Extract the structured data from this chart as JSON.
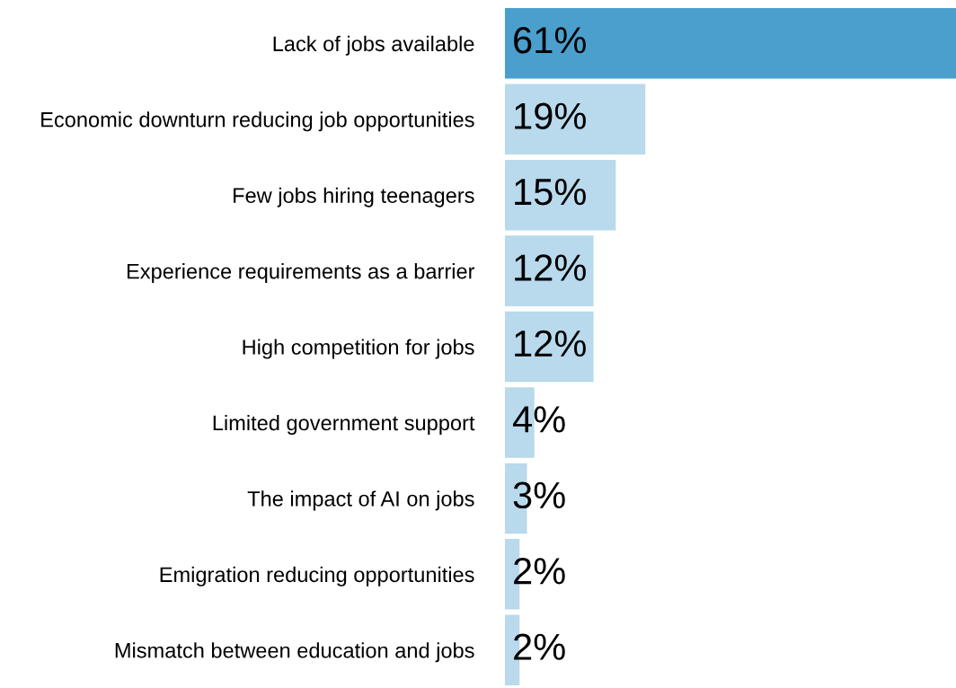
{
  "chart_data": {
    "type": "bar",
    "orientation": "horizontal",
    "tick_labels": "y",
    "categories": [
      "Lack of jobs available",
      "Economic downturn reducing job opportunities",
      "Few jobs hiring teenagers",
      "Experience requirements as a barrier",
      "High competition for jobs",
      "Limited government support",
      "The impact of AI on jobs",
      "Emigration reducing opportunities",
      "Mismatch between education and jobs"
    ],
    "values": [
      61,
      19,
      15,
      12,
      12,
      4,
      3,
      2,
      2
    ],
    "value_labels": [
      "61%",
      "19%",
      "15%",
      "12%",
      "12%",
      "4%",
      "3%",
      "2%",
      "2%"
    ],
    "colors": [
      "#4a9fcd",
      "#b9d9ec",
      "#b9d9ec",
      "#b9d9ec",
      "#b9d9ec",
      "#b9d9ec",
      "#b9d9ec",
      "#b9d9ec",
      "#b9d9ec"
    ],
    "grid": false
  }
}
